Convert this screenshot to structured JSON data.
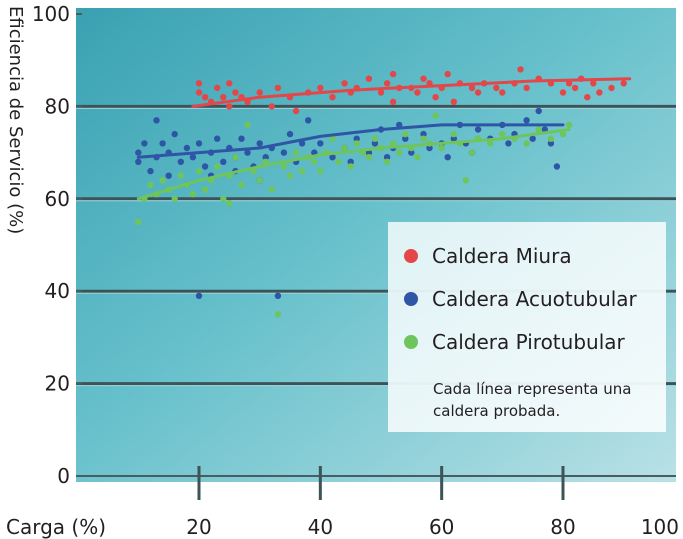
{
  "chart_data": {
    "type": "scatter",
    "xlabel": "Carga (%)",
    "ylabel": "Eficiencia de Servicio (%)",
    "xlim": [
      0,
      100
    ],
    "ylim": [
      0,
      100
    ],
    "x_ticks": [
      "20",
      "40",
      "60",
      "80",
      "100"
    ],
    "y_ticks": [
      "0",
      "20",
      "40",
      "60",
      "80",
      "100"
    ],
    "grid": "horizontal",
    "legend_position": "right",
    "note": "Cada línea representa una caldera probada.",
    "series": [
      {
        "name": "Caldera Miura",
        "color": "#e2474a",
        "points": [
          [
            20,
            85
          ],
          [
            20,
            83
          ],
          [
            21,
            82
          ],
          [
            22,
            81
          ],
          [
            23,
            84
          ],
          [
            24,
            82
          ],
          [
            25,
            85
          ],
          [
            25,
            80
          ],
          [
            26,
            83
          ],
          [
            27,
            82
          ],
          [
            28,
            81
          ],
          [
            30,
            83
          ],
          [
            32,
            80
          ],
          [
            33,
            84
          ],
          [
            35,
            82
          ],
          [
            36,
            79
          ],
          [
            38,
            83
          ],
          [
            40,
            84
          ],
          [
            42,
            82
          ],
          [
            44,
            85
          ],
          [
            45,
            83
          ],
          [
            46,
            84
          ],
          [
            48,
            86
          ],
          [
            50,
            83
          ],
          [
            51,
            85
          ],
          [
            52,
            87
          ],
          [
            52,
            81
          ],
          [
            53,
            84
          ],
          [
            55,
            84
          ],
          [
            56,
            83
          ],
          [
            57,
            86
          ],
          [
            58,
            85
          ],
          [
            59,
            82
          ],
          [
            60,
            84
          ],
          [
            61,
            87
          ],
          [
            62,
            81
          ],
          [
            63,
            85
          ],
          [
            65,
            84
          ],
          [
            66,
            83
          ],
          [
            67,
            85
          ],
          [
            69,
            84
          ],
          [
            70,
            83
          ],
          [
            72,
            85
          ],
          [
            73,
            88
          ],
          [
            74,
            84
          ],
          [
            76,
            86
          ],
          [
            78,
            85
          ],
          [
            80,
            83
          ],
          [
            81,
            85
          ],
          [
            82,
            84
          ],
          [
            83,
            86
          ],
          [
            84,
            82
          ],
          [
            85,
            85
          ],
          [
            86,
            83
          ],
          [
            88,
            84
          ],
          [
            90,
            85
          ]
        ],
        "trend": [
          [
            19,
            80
          ],
          [
            30,
            82
          ],
          [
            45,
            83.5
          ],
          [
            60,
            84.5
          ],
          [
            75,
            85.5
          ],
          [
            91,
            86
          ]
        ]
      },
      {
        "name": "Caldera Acuotubular",
        "color": "#2f55a6",
        "points": [
          [
            10,
            70
          ],
          [
            10,
            68
          ],
          [
            11,
            72
          ],
          [
            12,
            66
          ],
          [
            13,
            77
          ],
          [
            13,
            69
          ],
          [
            14,
            72
          ],
          [
            15,
            65
          ],
          [
            15,
            70
          ],
          [
            16,
            74
          ],
          [
            17,
            68
          ],
          [
            18,
            71
          ],
          [
            18,
            63
          ],
          [
            19,
            69
          ],
          [
            20,
            72
          ],
          [
            20,
            39
          ],
          [
            21,
            67
          ],
          [
            22,
            70
          ],
          [
            22,
            65
          ],
          [
            23,
            73
          ],
          [
            24,
            68
          ],
          [
            25,
            71
          ],
          [
            26,
            66
          ],
          [
            26,
            69
          ],
          [
            27,
            73
          ],
          [
            28,
            70
          ],
          [
            29,
            67
          ],
          [
            30,
            72
          ],
          [
            30,
            64
          ],
          [
            31,
            69
          ],
          [
            32,
            71
          ],
          [
            33,
            39
          ],
          [
            34,
            70
          ],
          [
            35,
            74
          ],
          [
            36,
            68
          ],
          [
            37,
            72
          ],
          [
            38,
            77
          ],
          [
            39,
            70
          ],
          [
            40,
            72
          ],
          [
            42,
            69
          ],
          [
            44,
            71
          ],
          [
            45,
            68
          ],
          [
            46,
            73
          ],
          [
            48,
            70
          ],
          [
            49,
            72
          ],
          [
            50,
            75
          ],
          [
            51,
            69
          ],
          [
            52,
            71
          ],
          [
            53,
            76
          ],
          [
            54,
            73
          ],
          [
            55,
            70
          ],
          [
            57,
            74
          ],
          [
            58,
            71
          ],
          [
            60,
            72
          ],
          [
            61,
            69
          ],
          [
            62,
            73
          ],
          [
            63,
            76
          ],
          [
            64,
            72
          ],
          [
            65,
            70
          ],
          [
            66,
            75
          ],
          [
            68,
            73
          ],
          [
            70,
            76
          ],
          [
            71,
            72
          ],
          [
            72,
            74
          ],
          [
            74,
            77
          ],
          [
            75,
            73
          ],
          [
            76,
            79
          ],
          [
            77,
            75
          ],
          [
            78,
            72
          ],
          [
            79,
            67
          ]
        ],
        "trend": [
          [
            10,
            69
          ],
          [
            20,
            70
          ],
          [
            30,
            71
          ],
          [
            40,
            73.5
          ],
          [
            50,
            75
          ],
          [
            60,
            76
          ],
          [
            70,
            76
          ],
          [
            80,
            76
          ]
        ]
      },
      {
        "name": "Caldera Pirotubular",
        "color": "#6ec55b",
        "points": [
          [
            10,
            55
          ],
          [
            11,
            60
          ],
          [
            12,
            63
          ],
          [
            13,
            61
          ],
          [
            14,
            64
          ],
          [
            15,
            62
          ],
          [
            16,
            60
          ],
          [
            17,
            65
          ],
          [
            18,
            63
          ],
          [
            19,
            61
          ],
          [
            20,
            66
          ],
          [
            21,
            62
          ],
          [
            22,
            64
          ],
          [
            23,
            67
          ],
          [
            24,
            60
          ],
          [
            25,
            65
          ],
          [
            25,
            59
          ],
          [
            26,
            69
          ],
          [
            27,
            63
          ],
          [
            28,
            76
          ],
          [
            29,
            66
          ],
          [
            30,
            64
          ],
          [
            31,
            68
          ],
          [
            32,
            62
          ],
          [
            33,
            35
          ],
          [
            34,
            67
          ],
          [
            35,
            65
          ],
          [
            36,
            70
          ],
          [
            37,
            66
          ],
          [
            38,
            69
          ],
          [
            39,
            68
          ],
          [
            40,
            66
          ],
          [
            41,
            70
          ],
          [
            42,
            73
          ],
          [
            43,
            68
          ],
          [
            44,
            71
          ],
          [
            45,
            67
          ],
          [
            46,
            72
          ],
          [
            47,
            70
          ],
          [
            48,
            69
          ],
          [
            49,
            73
          ],
          [
            50,
            71
          ],
          [
            51,
            68
          ],
          [
            52,
            72
          ],
          [
            53,
            70
          ],
          [
            54,
            74
          ],
          [
            55,
            71
          ],
          [
            56,
            69
          ],
          [
            57,
            73
          ],
          [
            58,
            72
          ],
          [
            59,
            78
          ],
          [
            60,
            71
          ],
          [
            62,
            74
          ],
          [
            63,
            72
          ],
          [
            64,
            64
          ],
          [
            65,
            70
          ],
          [
            66,
            73
          ],
          [
            68,
            72
          ],
          [
            70,
            74
          ],
          [
            72,
            73
          ],
          [
            74,
            72
          ],
          [
            76,
            75
          ],
          [
            78,
            73
          ],
          [
            80,
            74
          ],
          [
            81,
            76
          ]
        ],
        "trend": [
          [
            10,
            60
          ],
          [
            20,
            64
          ],
          [
            30,
            67
          ],
          [
            40,
            69.5
          ],
          [
            50,
            71
          ],
          [
            60,
            72
          ],
          [
            70,
            73
          ],
          [
            81,
            75
          ]
        ]
      }
    ]
  }
}
